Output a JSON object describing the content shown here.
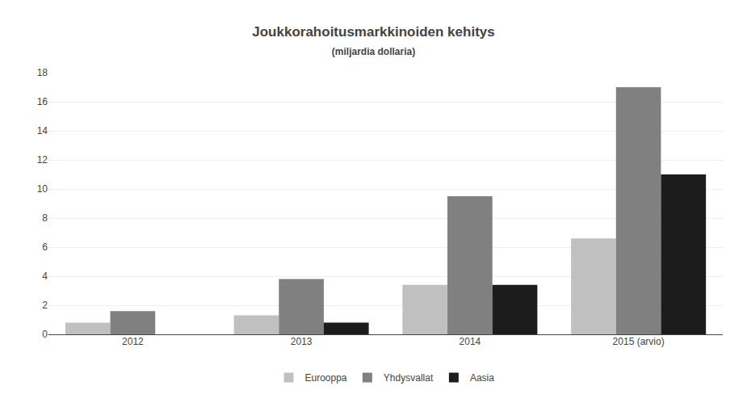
{
  "chart_data": {
    "type": "bar",
    "title": "Joukkorahoitusmarkkinoiden kehitys",
    "subtitle": "(miljardia dollaria)",
    "categories": [
      "2012",
      "2013",
      "2014",
      "2015 (arvio)"
    ],
    "series": [
      {
        "name": "Eurooppa",
        "color": "#c0c0c0",
        "values": [
          0.8,
          1.3,
          3.4,
          6.6
        ]
      },
      {
        "name": "Yhdysvallat",
        "color": "#808080",
        "values": [
          1.6,
          3.8,
          9.5,
          17.0
        ]
      },
      {
        "name": "Aasia",
        "color": "#1c1c1c",
        "values": [
          0.0,
          0.8,
          3.4,
          11.0
        ]
      }
    ],
    "ylim": [
      0,
      18
    ],
    "yticks": [
      0,
      2,
      4,
      6,
      8,
      10,
      12,
      14,
      16,
      18
    ],
    "grid": true,
    "legend": "bottom"
  }
}
